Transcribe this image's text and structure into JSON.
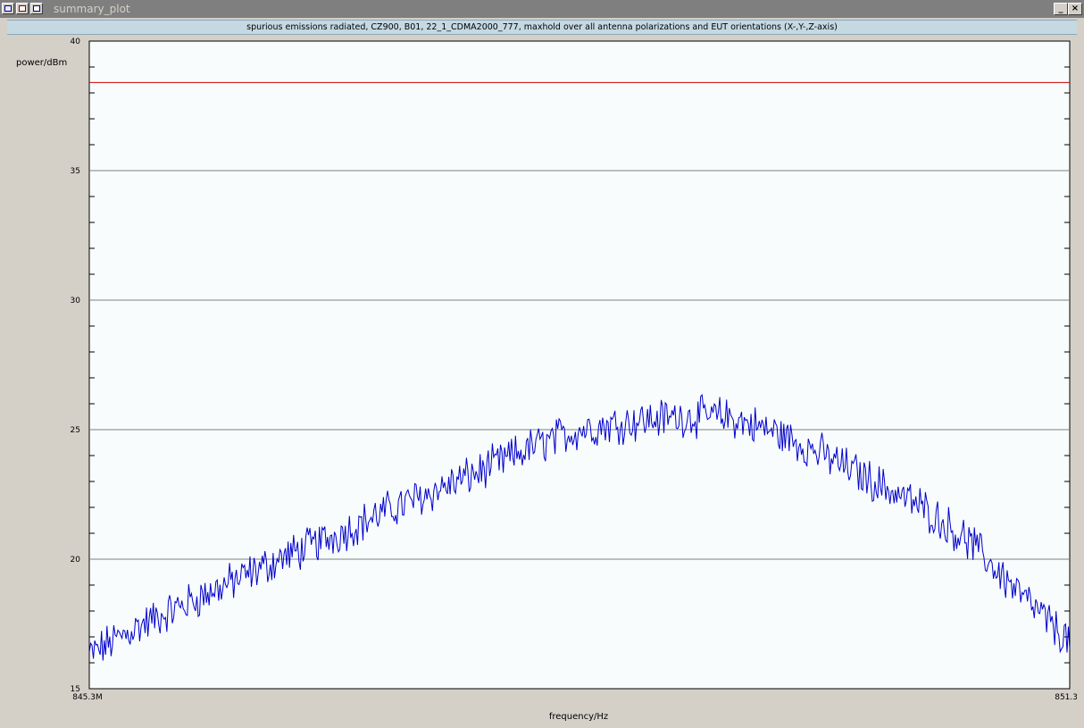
{
  "window": {
    "title": "summary_plot",
    "minimize_label": "_",
    "close_label": "×",
    "icons": [
      "app-menu-icon",
      "restore-icon",
      "maximize-icon"
    ]
  },
  "subtitle": "spurious emissions radiated, CZ900, B01, 22_1_CDMA2000_777, maxhold over all antenna polarizations and EUT orientations (X-,Y-,Z-axis)",
  "chart_data": {
    "type": "line",
    "ylabel": "power/dBm",
    "xlabel": "frequency/Hz",
    "ylim": [
      15,
      40
    ],
    "xlim": [
      845.3,
      851.3
    ],
    "x_unit": "MHz",
    "y_ticks": [
      15,
      20,
      25,
      30,
      35,
      40
    ],
    "x_tick_labels": [
      "845.3M",
      "851.3M"
    ],
    "grid": "horizontal at major y ticks",
    "limit_line": {
      "y": 38.4,
      "color": "#cc0000"
    },
    "series": [
      {
        "color": "#0000cc",
        "x": [
          845.3,
          845.6,
          845.9,
          846.2,
          846.5,
          846.8,
          847.1,
          847.4,
          847.7,
          848.0,
          848.3,
          848.6,
          848.9,
          849.2,
          849.5,
          849.8,
          850.1,
          850.4,
          850.7,
          851.0,
          851.3
        ],
        "values": [
          16.3,
          17.4,
          18.3,
          19.2,
          20.1,
          20.9,
          21.8,
          22.6,
          23.4,
          24.3,
          25.0,
          25.3,
          25.5,
          25.5,
          24.9,
          24.0,
          23.0,
          22.0,
          20.6,
          18.6,
          16.8
        ]
      }
    ]
  }
}
